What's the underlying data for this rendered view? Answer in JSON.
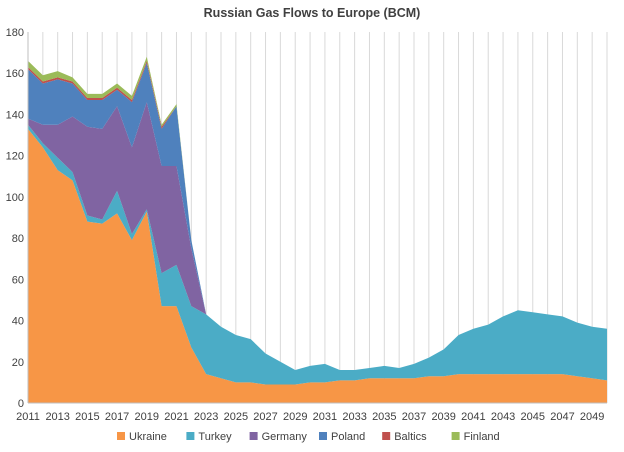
{
  "chart_data": {
    "type": "area",
    "stacked": true,
    "title": "Russian Gas Flows to Europe (BCM)",
    "xlabel": "",
    "ylabel": "",
    "xlim": [
      2011,
      2050
    ],
    "ylim": [
      0,
      180
    ],
    "y_ticks": [
      0,
      20,
      40,
      60,
      80,
      100,
      120,
      140,
      160,
      180
    ],
    "x_tick_labels": [
      "2011",
      "2013",
      "2015",
      "2017",
      "2019",
      "2021",
      "2023",
      "2025",
      "2027",
      "2029",
      "2031",
      "2033",
      "2035",
      "2037",
      "2039",
      "2041",
      "2043",
      "2045",
      "2047",
      "2049"
    ],
    "grid": "vertical",
    "legend_position": "bottom",
    "x": [
      2011,
      2012,
      2013,
      2014,
      2015,
      2016,
      2017,
      2018,
      2019,
      2020,
      2021,
      2022,
      2023,
      2024,
      2025,
      2026,
      2027,
      2028,
      2029,
      2030,
      2031,
      2032,
      2033,
      2034,
      2035,
      2036,
      2037,
      2038,
      2039,
      2040,
      2041,
      2042,
      2043,
      2044,
      2045,
      2046,
      2047,
      2048,
      2049,
      2050
    ],
    "series": [
      {
        "name": "Ukraine",
        "color": "#F79646",
        "values": [
          133,
          124,
          113,
          108,
          88,
          87,
          92,
          79,
          93,
          47,
          47,
          27,
          14,
          12,
          10,
          10,
          9,
          9,
          9,
          10,
          10,
          11,
          11,
          12,
          12,
          12,
          12,
          13,
          13,
          14,
          14,
          14,
          14,
          14,
          14,
          14,
          14,
          13,
          12,
          11
        ]
      },
      {
        "name": "Turkey",
        "color": "#4BACC6",
        "values": [
          2,
          2,
          6,
          4,
          3,
          2,
          11,
          3,
          1,
          16,
          20,
          20,
          29,
          25,
          23,
          21,
          15,
          11,
          7,
          8,
          9,
          5,
          5,
          5,
          6,
          5,
          7,
          9,
          13,
          19,
          22,
          24,
          28,
          31,
          30,
          29,
          28,
          26,
          25,
          25
        ]
      },
      {
        "name": "Germany",
        "color": "#8064A2",
        "values": [
          3,
          9,
          16,
          27,
          43,
          44,
          41,
          42,
          52,
          52,
          48,
          28,
          0,
          0,
          0,
          0,
          0,
          0,
          0,
          0,
          0,
          0,
          0,
          0,
          0,
          0,
          0,
          0,
          0,
          0,
          0,
          0,
          0,
          0,
          0,
          0,
          0,
          0,
          0,
          0
        ]
      },
      {
        "name": "Poland",
        "color": "#4F81BD",
        "values": [
          24,
          20,
          22,
          16,
          13,
          14,
          8,
          22,
          19,
          18,
          29,
          4,
          0,
          0,
          0,
          0,
          0,
          0,
          0,
          0,
          0,
          0,
          0,
          0,
          0,
          0,
          0,
          0,
          0,
          0,
          0,
          0,
          0,
          0,
          0,
          0,
          0,
          0,
          0,
          0
        ]
      },
      {
        "name": "Baltics",
        "color": "#C0504D",
        "values": [
          1,
          1,
          1,
          1,
          1,
          1,
          1,
          1,
          1,
          1,
          0,
          0,
          0,
          0,
          0,
          0,
          0,
          0,
          0,
          0,
          0,
          0,
          0,
          0,
          0,
          0,
          0,
          0,
          0,
          0,
          0,
          0,
          0,
          0,
          0,
          0,
          0,
          0,
          0,
          0
        ]
      },
      {
        "name": "Finland",
        "color": "#9BBB59",
        "values": [
          3,
          3,
          3,
          2,
          2,
          2,
          2,
          2,
          2,
          1,
          1,
          0,
          0,
          0,
          0,
          0,
          0,
          0,
          0,
          0,
          0,
          0,
          0,
          0,
          0,
          0,
          0,
          0,
          0,
          0,
          0,
          0,
          0,
          0,
          0,
          0,
          0,
          0,
          0,
          0
        ]
      }
    ]
  }
}
